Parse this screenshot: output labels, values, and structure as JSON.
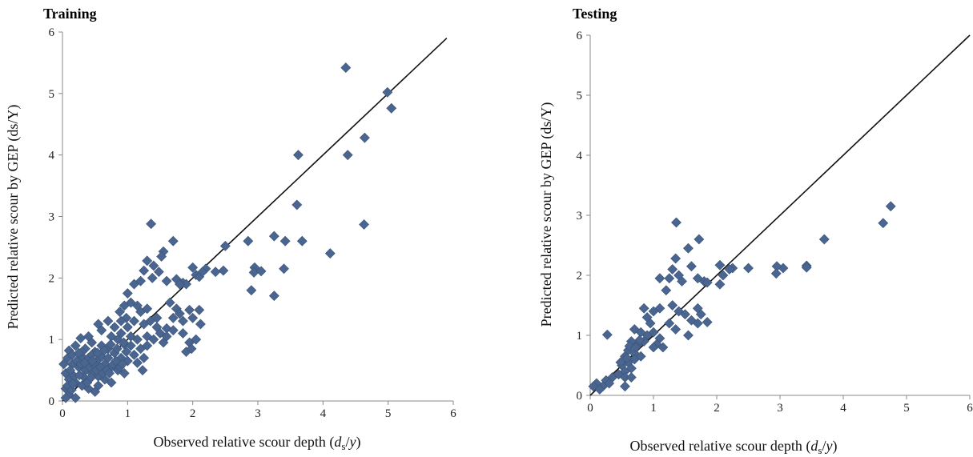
{
  "chart_data": [
    {
      "type": "scatter",
      "title": "Training",
      "xlabel": "Observed relative scour depth (ds/y)",
      "ylabel": "Predicted relative scour by GEP (ds/Y)",
      "xlim": [
        0,
        6
      ],
      "ylim": [
        0,
        6
      ],
      "xticks": [
        "0",
        "1",
        "2",
        "3",
        "4",
        "5",
        "6"
      ],
      "yticks": [
        "0",
        "1",
        "2",
        "3",
        "4",
        "5",
        "6"
      ],
      "marker": "diamond",
      "marker_color": "#4a6690",
      "line": {
        "name": "",
        "x": [
          0,
          5.9
        ],
        "y": [
          0,
          5.9
        ],
        "color": "#111111"
      },
      "points": [
        [
          4.35,
          5.42
        ],
        [
          4.99,
          5.02
        ],
        [
          5.05,
          4.76
        ],
        [
          4.64,
          4.28
        ],
        [
          3.62,
          4.0
        ],
        [
          4.38,
          4.0
        ],
        [
          3.6,
          3.19
        ],
        [
          4.63,
          2.87
        ],
        [
          1.36,
          2.88
        ],
        [
          3.25,
          2.68
        ],
        [
          2.85,
          2.6
        ],
        [
          3.42,
          2.6
        ],
        [
          3.68,
          2.6
        ],
        [
          1.7,
          2.6
        ],
        [
          2.5,
          2.52
        ],
        [
          1.55,
          2.43
        ],
        [
          1.52,
          2.35
        ],
        [
          4.11,
          2.4
        ],
        [
          2.95,
          2.17
        ],
        [
          2.94,
          2.09
        ],
        [
          3.05,
          2.11
        ],
        [
          3.4,
          2.15
        ],
        [
          2.47,
          2.12
        ],
        [
          2.2,
          2.15
        ],
        [
          2.0,
          2.17
        ],
        [
          2.05,
          2.05
        ],
        [
          2.1,
          2.02
        ],
        [
          1.3,
          2.28
        ],
        [
          1.4,
          2.2
        ],
        [
          1.48,
          2.1
        ],
        [
          1.25,
          2.12
        ],
        [
          1.38,
          2.0
        ],
        [
          1.6,
          1.95
        ],
        [
          1.75,
          1.98
        ],
        [
          1.85,
          1.92
        ],
        [
          1.9,
          1.9
        ],
        [
          2.9,
          1.8
        ],
        [
          3.25,
          1.71
        ],
        [
          1.65,
          1.6
        ],
        [
          1.75,
          1.5
        ],
        [
          1.8,
          1.42
        ],
        [
          1.95,
          1.48
        ],
        [
          2.1,
          1.48
        ],
        [
          1.7,
          1.35
        ],
        [
          1.85,
          1.3
        ],
        [
          2.0,
          1.35
        ],
        [
          1.6,
          1.18
        ],
        [
          1.7,
          1.15
        ],
        [
          1.85,
          1.1
        ],
        [
          1.95,
          0.95
        ],
        [
          2.05,
          1.0
        ],
        [
          2.12,
          1.25
        ],
        [
          1.9,
          0.8
        ],
        [
          1.98,
          0.85
        ],
        [
          1.0,
          1.75
        ],
        [
          1.1,
          1.9
        ],
        [
          1.2,
          1.95
        ],
        [
          1.05,
          1.6
        ],
        [
          1.15,
          1.55
        ],
        [
          0.95,
          1.55
        ],
        [
          0.88,
          1.45
        ],
        [
          1.2,
          1.45
        ],
        [
          1.3,
          1.5
        ],
        [
          1.35,
          1.3
        ],
        [
          1.45,
          1.2
        ],
        [
          1.25,
          1.25
        ],
        [
          1.1,
          1.3
        ],
        [
          1.0,
          1.2
        ],
        [
          0.9,
          1.1
        ],
        [
          1.3,
          1.05
        ],
        [
          1.4,
          1.0
        ],
        [
          1.55,
          0.95
        ],
        [
          1.5,
          1.1
        ],
        [
          1.2,
          0.85
        ],
        [
          1.3,
          0.9
        ],
        [
          1.1,
          0.75
        ],
        [
          1.25,
          0.7
        ],
        [
          1.23,
          0.5
        ],
        [
          1.15,
          0.62
        ],
        [
          0.55,
          1.25
        ],
        [
          0.6,
          1.15
        ],
        [
          0.7,
          1.3
        ],
        [
          0.8,
          1.2
        ],
        [
          0.75,
          1.05
        ],
        [
          0.85,
          1.0
        ],
        [
          0.95,
          0.92
        ],
        [
          0.4,
          1.05
        ],
        [
          0.28,
          1.02
        ],
        [
          0.45,
          0.95
        ],
        [
          0.6,
          0.9
        ],
        [
          0.7,
          0.85
        ],
        [
          0.8,
          0.78
        ],
        [
          0.9,
          0.7
        ],
        [
          1.0,
          0.65
        ],
        [
          0.5,
          0.8
        ],
        [
          0.35,
          0.85
        ],
        [
          0.2,
          0.9
        ],
        [
          0.1,
          0.82
        ],
        [
          0.3,
          0.72
        ],
        [
          0.4,
          0.7
        ],
        [
          0.55,
          0.68
        ],
        [
          0.65,
          0.6
        ],
        [
          0.75,
          0.55
        ],
        [
          0.85,
          0.5
        ],
        [
          0.95,
          0.45
        ],
        [
          0.15,
          0.6
        ],
        [
          0.25,
          0.55
        ],
        [
          0.35,
          0.5
        ],
        [
          0.45,
          0.45
        ],
        [
          0.55,
          0.4
        ],
        [
          0.65,
          0.35
        ],
        [
          0.75,
          0.3
        ],
        [
          0.05,
          0.45
        ],
        [
          0.1,
          0.35
        ],
        [
          0.2,
          0.3
        ],
        [
          0.3,
          0.25
        ],
        [
          0.4,
          0.2
        ],
        [
          0.5,
          0.15
        ],
        [
          0.55,
          0.25
        ],
        [
          0.05,
          0.2
        ],
        [
          0.1,
          0.1
        ],
        [
          0.2,
          0.05
        ],
        [
          0.05,
          0.05
        ],
        [
          0.02,
          0.6
        ],
        [
          0.08,
          0.7
        ],
        [
          0.12,
          0.5
        ],
        [
          0.18,
          0.4
        ],
        [
          0.22,
          0.65
        ],
        [
          0.28,
          0.6
        ],
        [
          0.32,
          0.4
        ],
        [
          0.38,
          0.3
        ],
        [
          0.42,
          0.55
        ],
        [
          0.48,
          0.6
        ],
        [
          0.52,
          0.5
        ],
        [
          0.58,
          0.55
        ],
        [
          0.62,
          0.45
        ],
        [
          0.68,
          0.5
        ],
        [
          0.72,
          0.45
        ],
        [
          0.78,
          0.6
        ],
        [
          0.82,
          0.65
        ],
        [
          0.88,
          0.55
        ],
        [
          0.92,
          0.6
        ],
        [
          0.98,
          0.8
        ],
        [
          0.3,
          0.8
        ],
        [
          0.15,
          0.75
        ],
        [
          0.25,
          0.78
        ],
        [
          0.45,
          0.75
        ],
        [
          0.6,
          0.72
        ],
        [
          0.7,
          0.7
        ],
        [
          0.08,
          0.25
        ],
        [
          0.14,
          0.18
        ],
        [
          0.16,
          0.28
        ],
        [
          0.26,
          0.42
        ],
        [
          0.34,
          0.62
        ],
        [
          0.44,
          0.38
        ],
        [
          0.46,
          0.65
        ],
        [
          0.54,
          0.78
        ],
        [
          0.64,
          0.82
        ],
        [
          0.74,
          0.92
        ],
        [
          0.84,
          0.85
        ],
        [
          0.94,
          0.95
        ],
        [
          1.05,
          0.9
        ],
        [
          1.15,
          1.0
        ],
        [
          1.05,
          1.05
        ],
        [
          0.98,
          1.35
        ],
        [
          0.9,
          1.3
        ],
        [
          1.45,
          1.35
        ],
        [
          1.6,
          1.05
        ],
        [
          1.8,
          1.9
        ],
        [
          2.35,
          2.1
        ],
        [
          2.15,
          2.1
        ]
      ]
    },
    {
      "type": "scatter",
      "title": "Testing",
      "xlabel": "Observed relative scour depth (ds/y)",
      "ylabel": "Predicted relative scour by GEP (ds/Y)",
      "xlim": [
        0,
        6
      ],
      "ylim": [
        0,
        6
      ],
      "xticks": [
        "0",
        "1",
        "2",
        "3",
        "4",
        "5",
        "6"
      ],
      "yticks": [
        "0",
        "1",
        "2",
        "3",
        "4",
        "5",
        "6"
      ],
      "marker": "diamond",
      "marker_color": "#4a6690",
      "line": {
        "name": "",
        "x": [
          0,
          6
        ],
        "y": [
          0,
          6
        ],
        "color": "#111111"
      },
      "points": [
        [
          4.75,
          3.15
        ],
        [
          4.63,
          2.87
        ],
        [
          3.7,
          2.6
        ],
        [
          3.42,
          2.16
        ],
        [
          3.42,
          2.13
        ],
        [
          3.05,
          2.12
        ],
        [
          2.95,
          2.15
        ],
        [
          2.94,
          2.03
        ],
        [
          2.5,
          2.12
        ],
        [
          2.25,
          2.12
        ],
        [
          2.2,
          2.1
        ],
        [
          2.05,
          2.17
        ],
        [
          2.1,
          2.0
        ],
        [
          2.05,
          1.85
        ],
        [
          1.36,
          2.88
        ],
        [
          1.72,
          2.6
        ],
        [
          1.55,
          2.45
        ],
        [
          1.35,
          2.28
        ],
        [
          1.3,
          2.1
        ],
        [
          1.4,
          2.0
        ],
        [
          1.45,
          1.9
        ],
        [
          1.6,
          2.15
        ],
        [
          1.7,
          1.95
        ],
        [
          1.8,
          1.9
        ],
        [
          1.85,
          1.88
        ],
        [
          1.2,
          1.75
        ],
        [
          1.1,
          1.95
        ],
        [
          1.25,
          1.95
        ],
        [
          1.3,
          1.5
        ],
        [
          1.4,
          1.4
        ],
        [
          1.5,
          1.35
        ],
        [
          1.7,
          1.45
        ],
        [
          1.75,
          1.35
        ],
        [
          1.6,
          1.25
        ],
        [
          1.7,
          1.2
        ],
        [
          1.85,
          1.22
        ],
        [
          1.55,
          1.0
        ],
        [
          1.35,
          1.1
        ],
        [
          1.25,
          1.2
        ],
        [
          1.1,
          1.45
        ],
        [
          1.0,
          1.4
        ],
        [
          0.85,
          1.45
        ],
        [
          0.9,
          1.3
        ],
        [
          0.95,
          1.2
        ],
        [
          1.0,
          1.05
        ],
        [
          1.1,
          0.95
        ],
        [
          1.05,
          0.85
        ],
        [
          1.15,
          0.8
        ],
        [
          1.0,
          0.8
        ],
        [
          0.9,
          1.0
        ],
        [
          0.8,
          1.05
        ],
        [
          0.7,
          1.1
        ],
        [
          0.85,
          0.9
        ],
        [
          0.75,
          0.85
        ],
        [
          0.65,
          0.9
        ],
        [
          0.6,
          0.75
        ],
        [
          0.7,
          0.7
        ],
        [
          0.8,
          0.65
        ],
        [
          0.55,
          0.65
        ],
        [
          0.6,
          0.55
        ],
        [
          0.65,
          0.45
        ],
        [
          0.7,
          0.6
        ],
        [
          0.5,
          0.5
        ],
        [
          0.55,
          0.4
        ],
        [
          0.45,
          0.35
        ],
        [
          0.55,
          0.3
        ],
        [
          0.65,
          0.3
        ],
        [
          0.35,
          0.3
        ],
        [
          0.25,
          0.25
        ],
        [
          0.3,
          0.2
        ],
        [
          0.55,
          0.15
        ],
        [
          0.2,
          0.15
        ],
        [
          0.1,
          0.2
        ],
        [
          0.05,
          0.15
        ],
        [
          0.15,
          0.1
        ],
        [
          0.27,
          1.01
        ],
        [
          0.62,
          0.82
        ],
        [
          0.72,
          0.8
        ],
        [
          0.78,
          0.92
        ],
        [
          0.58,
          0.62
        ],
        [
          0.48,
          0.55
        ]
      ]
    }
  ]
}
